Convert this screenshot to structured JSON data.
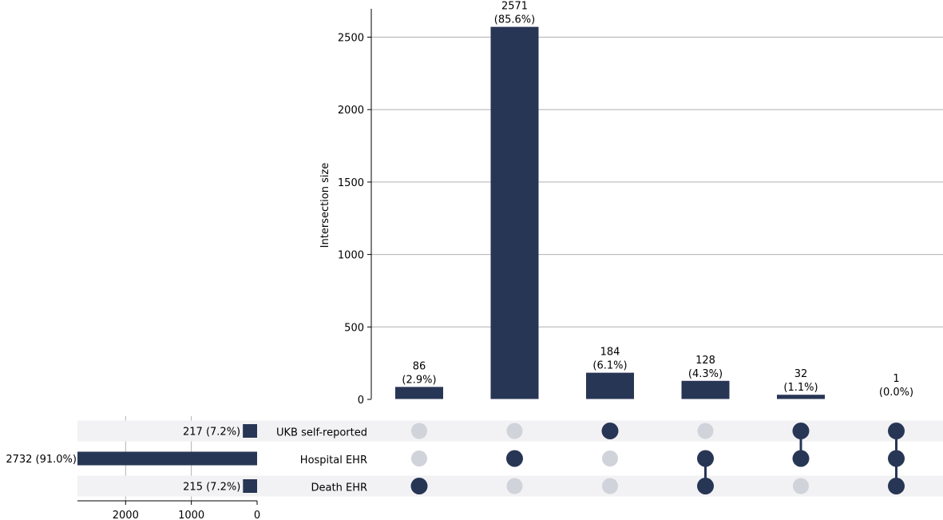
{
  "chart_data": {
    "type": "upset",
    "bar_color": "#283655",
    "inactive_dot_color": "#d0d3da",
    "stripe_color": "#f2f2f4",
    "grid_color": "#b0b0b0",
    "intersections": {
      "ylabel": "Intersection size",
      "ylim": [
        0,
        2700
      ],
      "yticks": [
        0,
        500,
        1000,
        1500,
        2000,
        2500
      ],
      "grid": true,
      "bars": [
        {
          "value": 86,
          "count_label": "86",
          "pct_label": "(2.9%)",
          "members": [
            false,
            false,
            true
          ]
        },
        {
          "value": 2571,
          "count_label": "2571",
          "pct_label": "(85.6%)",
          "members": [
            false,
            true,
            false
          ]
        },
        {
          "value": 184,
          "count_label": "184",
          "pct_label": "(6.1%)",
          "members": [
            true,
            false,
            false
          ]
        },
        {
          "value": 128,
          "count_label": "128",
          "pct_label": "(4.3%)",
          "members": [
            false,
            true,
            true
          ]
        },
        {
          "value": 32,
          "count_label": "32",
          "pct_label": "(1.1%)",
          "members": [
            true,
            true,
            false
          ]
        },
        {
          "value": 1,
          "count_label": "1",
          "pct_label": "(0.0%)",
          "members": [
            true,
            true,
            true
          ]
        }
      ]
    },
    "sets": {
      "xticks": [
        2000,
        1000,
        0
      ],
      "xlim": [
        2732,
        0
      ],
      "grid": true,
      "items": [
        {
          "name": "UKB self-reported",
          "value": 217,
          "label": "217 (7.2%)"
        },
        {
          "name": "Hospital EHR",
          "value": 2732,
          "label": "2732 (91.0%)"
        },
        {
          "name": "Death EHR",
          "value": 215,
          "label": "215 (7.2%)"
        }
      ]
    }
  }
}
